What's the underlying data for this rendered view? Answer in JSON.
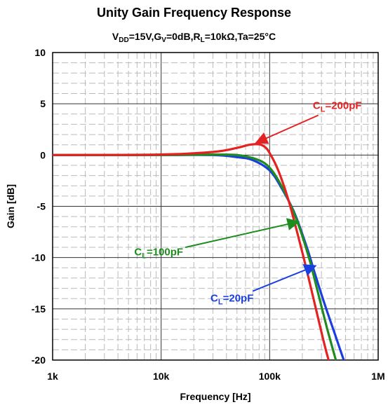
{
  "chart_data": {
    "type": "line",
    "title": "Unity Gain Frequency Response",
    "subtitle": {
      "parts": [
        {
          "t": "V"
        },
        {
          "t": "DD",
          "sub": true
        },
        {
          "t": "=15V,G"
        },
        {
          "t": "V",
          "sub": true
        },
        {
          "t": "=0dB,R"
        },
        {
          "t": "L",
          "sub": true
        },
        {
          "t": "=10kΩ,Ta=25°C"
        }
      ]
    },
    "xlabel": "Frequency [Hz]",
    "ylabel": "Gain [dB]",
    "xscale": "log",
    "xlim": [
      1000,
      1000000
    ],
    "ylim": [
      -20,
      10
    ],
    "grid": true,
    "x_ticks": [
      {
        "value": 1000,
        "label": "1k"
      },
      {
        "value": 10000,
        "label": "10k"
      },
      {
        "value": 100000,
        "label": "100k"
      },
      {
        "value": 1000000,
        "label": "1M"
      }
    ],
    "y_ticks": [
      {
        "value": 10,
        "label": "10"
      },
      {
        "value": 5,
        "label": "5"
      },
      {
        "value": 0,
        "label": "0"
      },
      {
        "value": -5,
        "label": "-5"
      },
      {
        "value": -10,
        "label": "-10"
      },
      {
        "value": -15,
        "label": "-15"
      },
      {
        "value": -20,
        "label": "-20"
      }
    ],
    "series": [
      {
        "name": "CL=20pF",
        "color": "#1a3fe0",
        "points": [
          [
            1000,
            0
          ],
          [
            10000,
            0
          ],
          [
            30000,
            0
          ],
          [
            50000,
            -0.2
          ],
          [
            70000,
            -0.5
          ],
          [
            100000,
            -1.5
          ],
          [
            130000,
            -3.3
          ],
          [
            170000,
            -5.7
          ],
          [
            220000,
            -9
          ],
          [
            260000,
            -11.5
          ],
          [
            320000,
            -14.5
          ],
          [
            400000,
            -17.5
          ],
          [
            500000,
            -20.5
          ]
        ]
      },
      {
        "name": "CL=100pF",
        "color": "#1e8c1e",
        "points": [
          [
            1000,
            0
          ],
          [
            10000,
            0
          ],
          [
            30000,
            0.05
          ],
          [
            50000,
            0
          ],
          [
            70000,
            -0.3
          ],
          [
            90000,
            -0.8
          ],
          [
            110000,
            -1.8
          ],
          [
            140000,
            -3.8
          ],
          [
            180000,
            -6.5
          ],
          [
            230000,
            -10
          ],
          [
            280000,
            -13.5
          ],
          [
            340000,
            -17
          ],
          [
            420000,
            -20.5
          ]
        ]
      },
      {
        "name": "CL=200pF",
        "color": "#e52222",
        "points": [
          [
            1000,
            0
          ],
          [
            10000,
            0.05
          ],
          [
            30000,
            0.3
          ],
          [
            50000,
            0.7
          ],
          [
            65000,
            1.0
          ],
          [
            80000,
            1.05
          ],
          [
            90000,
            0.8
          ],
          [
            100000,
            0.2
          ],
          [
            120000,
            -1.5
          ],
          [
            150000,
            -4.5
          ],
          [
            200000,
            -9.5
          ],
          [
            260000,
            -14.5
          ],
          [
            320000,
            -18.5
          ],
          [
            360000,
            -20.5
          ]
        ]
      }
    ],
    "annotations": [
      {
        "label_main": "C",
        "label_sub": "L",
        "label_rest": "=200pF",
        "series": "CL=200pF",
        "text_x": 420000,
        "text_y": 4.5,
        "arrow_to": [
          75000,
          1.2
        ]
      },
      {
        "label_main": "C",
        "label_sub": "L",
        "label_rest": "=100pF",
        "series": "CL=100pF",
        "text_x": 9500,
        "text_y": -9.8,
        "arrow_to": [
          185000,
          -6.5
        ]
      },
      {
        "label_main": "C",
        "label_sub": "L",
        "label_rest": "=20pF",
        "series": "CL=20pF",
        "text_x": 45000,
        "text_y": -14.3,
        "arrow_to": [
          265000,
          -10.8
        ]
      }
    ]
  }
}
